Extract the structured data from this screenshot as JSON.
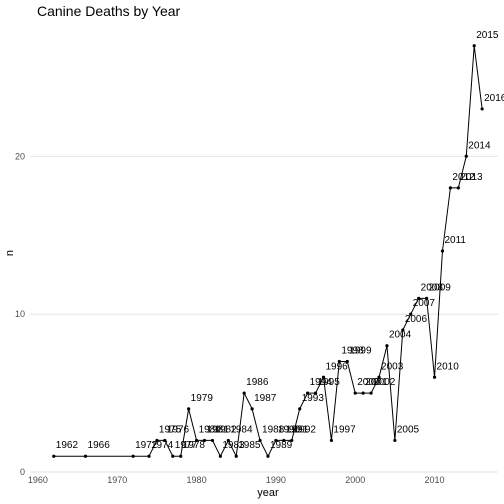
{
  "chart_data": {
    "type": "line",
    "title": "Canine Deaths by Year",
    "xlabel": "year",
    "ylabel": "n",
    "xlim": [
      1959,
      2018
    ],
    "ylim": [
      0,
      28
    ],
    "x_ticks": [
      1960,
      1970,
      1980,
      1990,
      2000,
      2010
    ],
    "y_ticks": [
      0,
      10,
      20
    ],
    "grid": "horizontal-major",
    "series": [
      {
        "x": [
          1962,
          1966,
          1972,
          1974,
          1975,
          1976,
          1977,
          1978,
          1979,
          1980,
          1981,
          1982,
          1983,
          1984,
          1985,
          1986,
          1987,
          1988,
          1989,
          1990,
          1991,
          1992,
          1993,
          1994,
          1995,
          1996,
          1997,
          1998,
          1999,
          2000,
          2001,
          2002,
          2003,
          2004,
          2005,
          2006,
          2007,
          2008,
          2009,
          2010,
          2011,
          2012,
          2013,
          2014,
          2015,
          2016
        ],
        "y": [
          1,
          1,
          1,
          1,
          2,
          2,
          1,
          1,
          4,
          2,
          2,
          2,
          1,
          2,
          1,
          5,
          4,
          2,
          1,
          2,
          2,
          2,
          4,
          5,
          5,
          6,
          2,
          7,
          7,
          5,
          5,
          5,
          6,
          8,
          2,
          9,
          10,
          11,
          11,
          6,
          14,
          18,
          18,
          20,
          27,
          23
        ],
        "labels": [
          "1962",
          "1966",
          "1972",
          "1974",
          "1975",
          "1976",
          "1977",
          "1978",
          "1979",
          "1980",
          "1981",
          "1982",
          "1983",
          "1984",
          "1985",
          "1986",
          "1987",
          "1988",
          "1989",
          "1990",
          "1991",
          "1992",
          "1993",
          "1994",
          "1995",
          "1996",
          "1997",
          "1998",
          "1999",
          "2000",
          "2001",
          "2002",
          "2003",
          "2004",
          "2005",
          "2006",
          "2007",
          "2008",
          "2009",
          "2010",
          "2011",
          "2012",
          "2013",
          "2014",
          "2015",
          "2016"
        ]
      }
    ]
  }
}
